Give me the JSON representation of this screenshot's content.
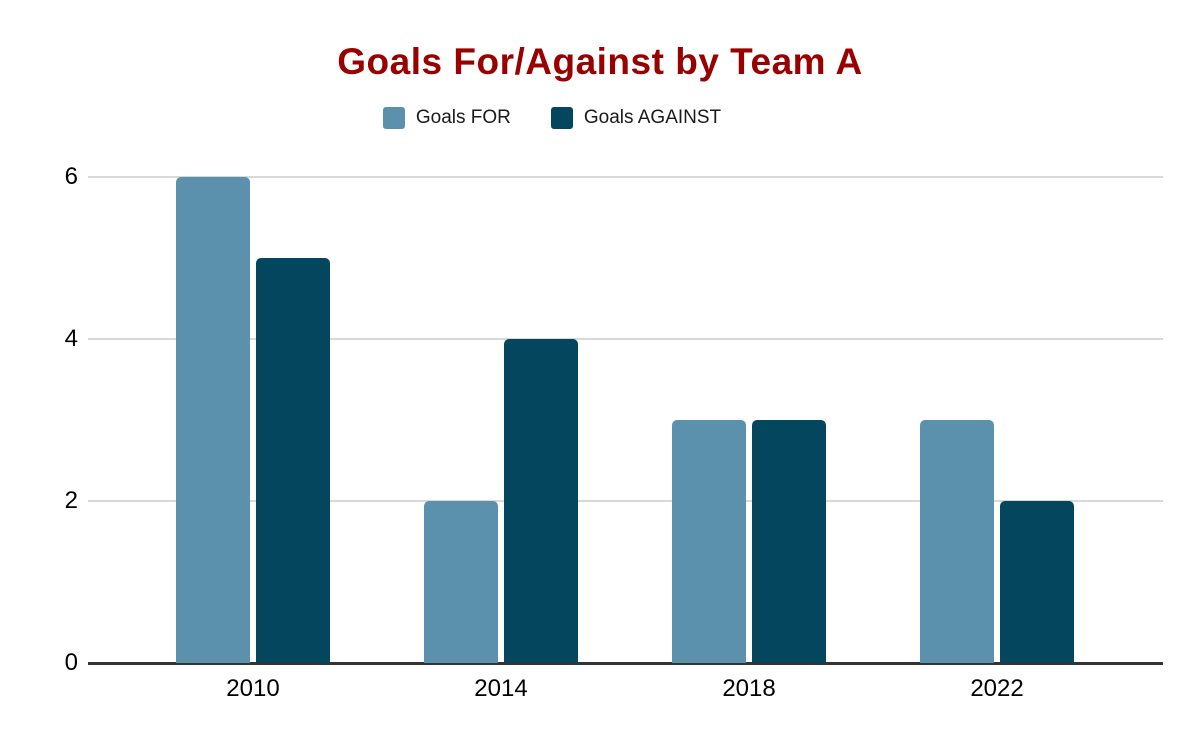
{
  "title": {
    "text": "Goals For/Against by Team A",
    "color": "#990000"
  },
  "legend": {
    "position": "top",
    "items": [
      {
        "label": "Goals FOR",
        "color": "#5b91ad"
      },
      {
        "label": "Goals AGAINST",
        "color": "#05465f"
      }
    ]
  },
  "chart_data": {
    "type": "bar",
    "title": "Goals For/Against by Team A",
    "categories": [
      "2010",
      "2014",
      "2018",
      "2022"
    ],
    "series": [
      {
        "name": "Goals FOR",
        "color": "#5b91ad",
        "values": [
          6,
          2,
          3,
          3
        ]
      },
      {
        "name": "Goals AGAINST",
        "color": "#05465f",
        "values": [
          5,
          4,
          3,
          2
        ]
      }
    ],
    "xlabel": "",
    "ylabel": "",
    "ylim": [
      0,
      6
    ],
    "yticks": [
      0,
      2,
      4,
      6
    ],
    "grid": true,
    "legend_position": "top",
    "colors": {
      "gridline": "#d9d9d9",
      "axis_line": "#333333",
      "tick_label": "#000000",
      "background": "#ffffff"
    }
  }
}
